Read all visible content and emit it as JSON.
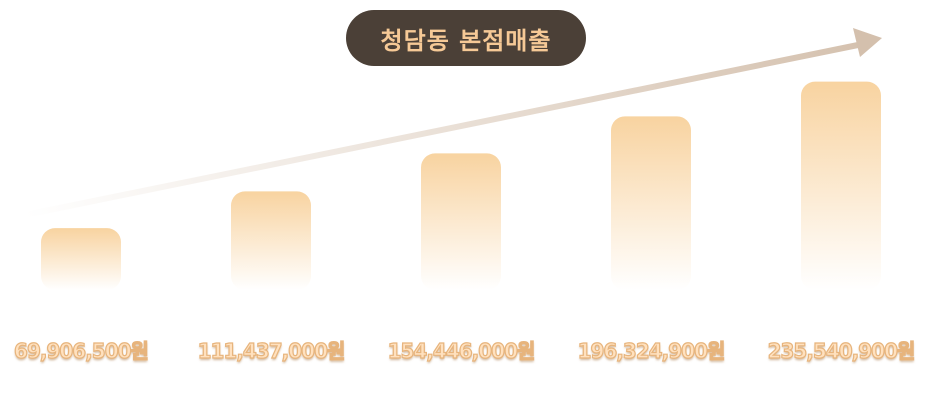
{
  "chart_data": {
    "type": "bar",
    "title": "청담동 본점매출",
    "categories": [
      "",
      "",
      "",
      "",
      ""
    ],
    "values": [
      69906500,
      111437000,
      154446000,
      196324900,
      235540900
    ],
    "value_labels": [
      "69,906,500원",
      "111,437,000원",
      "154,446,000원",
      "196,324,900원",
      "235,540,900원"
    ],
    "xlabel": "",
    "ylabel": "",
    "ylim": [
      0,
      260000000
    ],
    "grid": false,
    "legend": "none",
    "trend_arrow": true
  },
  "colors": {
    "title_bg": "#4b4037",
    "title_text": "#f6c996",
    "bar_top": "#f8d3a0",
    "bar_bottom": "#ffffff",
    "arrow": "#d4c0ad",
    "label_fill": "#ffe1bf",
    "label_stroke": "#e7b47c"
  }
}
